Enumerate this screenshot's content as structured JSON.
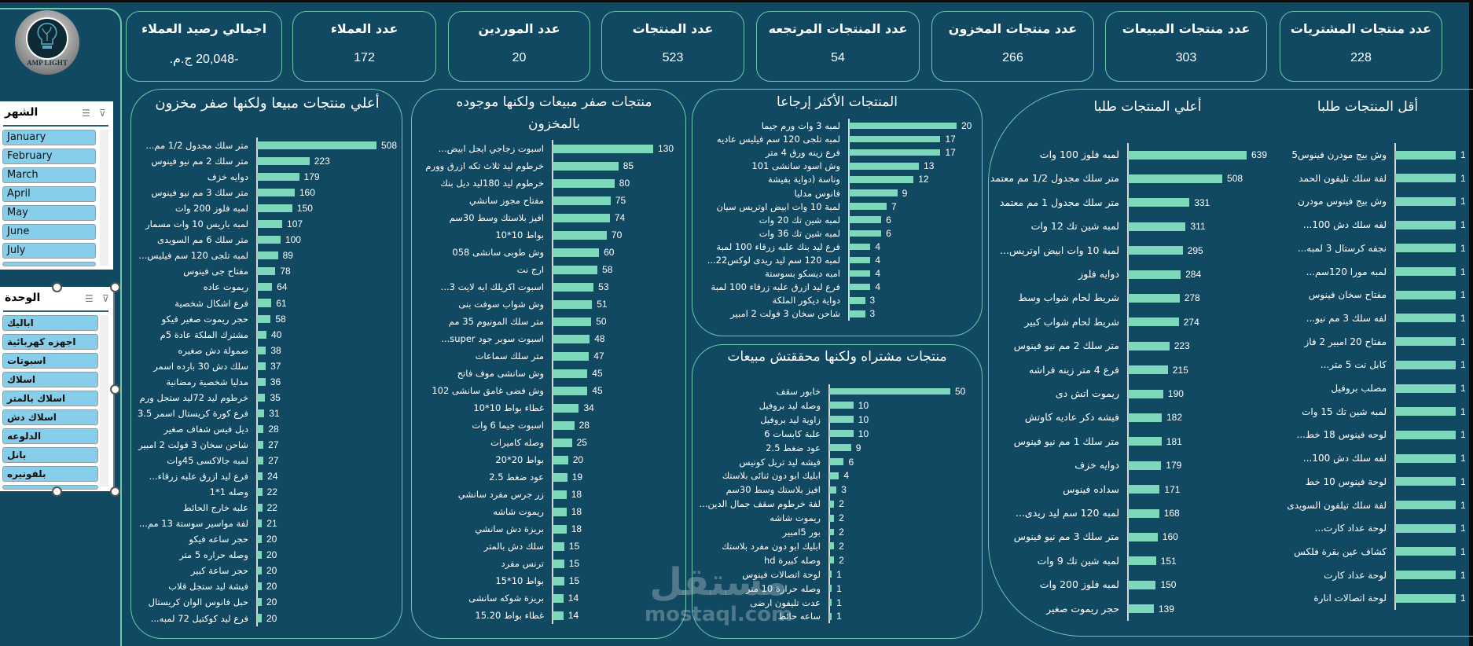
{
  "logo": {
    "text": "AMP LIGHT"
  },
  "kpis": [
    {
      "title": "عدد منتجات المشتريات",
      "value": "228"
    },
    {
      "title": "عدد منتجات المبيعات",
      "value": "303"
    },
    {
      "title": "عدد منتجات المخزون",
      "value": "266"
    },
    {
      "title": "عدد المنتجات المرتجعه",
      "value": "54"
    },
    {
      "title": "عدد المنتجات",
      "value": "523"
    },
    {
      "title": "عدد الموردين",
      "value": "20"
    },
    {
      "title": "عدد العملاء",
      "value": "172"
    },
    {
      "title": "اجمالي رصيد العملاء",
      "value": "-20,048 ج.م."
    }
  ],
  "slicers": {
    "month": {
      "title": "الشهر",
      "items": [
        "January",
        "February",
        "March",
        "April",
        "May",
        "June",
        "July"
      ]
    },
    "unit": {
      "title": "الوحدة",
      "items": [
        "اباليك",
        "اجهزه كهربائية",
        "اسبوتات",
        "اسلاك",
        "اسلاك بالمتر",
        "اسلاك دش",
        "الدلوعه",
        "بانل",
        "بلفونيره"
      ]
    }
  },
  "colors": {
    "background": "#114862",
    "bar": "#7dd8bc",
    "border": "#6cc9ab"
  },
  "watermark": {
    "arabic": "مستقل",
    "latin": "mostaql.com"
  },
  "chart_data": [
    {
      "type": "bar",
      "orientation": "horizontal",
      "title": "أعلي منتجات مبيعا ولكنها صفر مخزون",
      "categories": [
        "متر سلك مجدول 1/2 مم...",
        "متر سلك  2 مم نيو فينوس",
        "دوايه خزف",
        "متر سلك  3 مم نيو فينوس",
        "لمبه فلوز 200 وات",
        "لمبه باريس 10 وات مسمار",
        "متر سلك 6 مم السويدى",
        "لمبه تلجى 120 سم فيليس...",
        "مفتاح جى  فينوس",
        "ريموت عاده",
        "فرع اشكال شخصية",
        "حجر ريموت صغير فيكو",
        "مشترك الملكة عادة 5م",
        "صمولة دش صغيره",
        "سلك دش 30 بارده اسمر",
        "مدليا شخصية رمضانية",
        "خرطوم ليد 72ليد ستجل  ورم",
        "فرع كورة كريستال اسمر 3.5",
        "ديل فيس شفاف صغير",
        "شاحن سخان 3 فولت 2 امبير",
        "لمبه جالاكسى  45وات",
        "فرع ليد ازرق علبه زرقاء...",
        "وصله 1*1",
        "علبه خارج الحائط",
        "لفة مواسير سوستة 13 مم...",
        "حجر ساعه فيكو",
        "وصله حراره 5 متر",
        "حجر ساعة كبير",
        "فيشة ليد ستجل قلاب",
        "حبل فانوس الوان  كريستال",
        "فرع ليد كوكتيل 72 لمبه..."
      ],
      "values": [
        508,
        223,
        179,
        160,
        150,
        107,
        100,
        89,
        78,
        64,
        61,
        58,
        40,
        38,
        37,
        36,
        35,
        31,
        28,
        27,
        27,
        24,
        22,
        22,
        21,
        20,
        20,
        20,
        20,
        20,
        20
      ]
    },
    {
      "type": "bar",
      "orientation": "horizontal",
      "title": "منتجات صفر مبيعات ولكنها موجوده بالمخزون",
      "categories": [
        "اسبوت زجاجي ايجل ابيض...",
        "خرطوم ليد ثلاث تكه ازرق وورم",
        "خرطوم ليد 180ليد ديل بنك",
        "مفتاح مجوز سانشي",
        "افيز بلاستك وسط 30سم",
        "بواط 10*10",
        "وش طوبى سانشى  058",
        "ارج نت",
        "اسبوت اكريلك  ايه لايت 3...",
        "وش شواب سوفت بنى",
        "متر سلك المونيوم  35 مم",
        "اسبوت سوبر جود   super...",
        "متر سلك سماعات",
        "وش سانشى موف فاتح",
        "وش فضى غامق  سانشى 102",
        "غطاء بواط 10*10",
        "اسبوت جيما 6 وات",
        "وصله كاميرات",
        "بواط 20*20",
        "عود ضغط 2.5",
        "زر جرس مفرد سانشي",
        "ريموت شاشه",
        "بريزة دش سانشي",
        "سلك دش  بالمتر",
        "ترنس مفرد",
        "بواط 10*15",
        "بريزة شوكه سانشى",
        "غطاء بواط 15.20"
      ],
      "values": [
        130,
        85,
        80,
        75,
        74,
        70,
        60,
        58,
        53,
        51,
        50,
        48,
        47,
        45,
        45,
        34,
        28,
        25,
        20,
        19,
        18,
        18,
        18,
        15,
        15,
        15,
        14,
        14
      ]
    },
    {
      "type": "bar",
      "orientation": "horizontal",
      "title": "المنتجات الأكثر إرجاعا",
      "categories": [
        "لمبه 3 وات ورم جيما",
        "لمبه تلجى 120 سم فيليس عاديه",
        "فرع زينه ورق 4 متر",
        "وش اسود سانشى 101",
        "وناسة (دواية بفيشة",
        "فانوس مدليا",
        "لمبة 10 وات ابيض اوتريس سيان",
        "لمبه شين تك 20 وات",
        "لمبه شين تك 36 وات",
        "فرع ليد بنك علبه زرقاء 100 لمبة",
        "لمبه 120 سم ليد ريدى لوكس22...",
        "امبه ديسكو بسوستة",
        "فرع ليد ازرق علبه زرقاء 100 لمبة",
        "دواية ديكور الملكة",
        "شاحن سخان 3 فولت 2 امبير"
      ],
      "values": [
        20,
        17,
        17,
        13,
        12,
        9,
        7,
        6,
        6,
        4,
        4,
        4,
        4,
        3,
        3
      ]
    },
    {
      "type": "bar",
      "orientation": "horizontal",
      "title": "منتجات مشتراه ولكنها محققتش مبيعات",
      "categories": [
        "خابور سقف",
        "وصله ليد بروفيل",
        "زاوية ليد بروفيل",
        "علبة كابسات 6",
        "عود ضغط 2.5",
        "فيشه ليد تريل كونيس",
        "ابليك ابو دون ثنائى بلاستك",
        "افيز بلاستك وسط 30سم",
        "لفة خرطوم سقف جمال الدين...",
        "ريموت شاشه",
        "بور 5امبير",
        "ابليك ابو دون مفرد بلاستك",
        "وصله كبيرة hd",
        "لوحة اتصالات فينوس",
        "وصله حرارة 10 متر",
        "عدت تليفون ارضى",
        "ساعه حائط"
      ],
      "values": [
        50,
        10,
        10,
        10,
        9,
        6,
        4,
        3,
        2,
        2,
        2,
        2,
        2,
        1,
        1,
        1,
        1
      ]
    },
    {
      "type": "bar",
      "orientation": "horizontal",
      "title": "أعلي المنتجات طلبا",
      "categories": [
        "لمبه فلوز 100 وات",
        "متر سلك مجدول 1/2 مم معتمد",
        "متر سلك مجدول 1 مم  معتمد",
        "لمبه شين تك 12 وات",
        "لمبة 10 وات ابيض اوتريس...",
        "دوايه فلوز",
        "شريط لحام شواب وسط",
        "شريط لحام شواب كبير",
        "متر سلك  2 مم نيو فينوس",
        "فرع 4 متر زينه فراشه",
        "ريموت اتش دى",
        "فيشه دكر عاديه كاوتش",
        "متر سلك  1 مم نيو فينوس",
        "دوايه خزف",
        "سداده فينوس",
        "لمبه 120 سم ليد ريدى...",
        "متر سلك  3 مم نيو فينوس",
        "لمبه شين تك 9 وات",
        "لمبه فلوز 200 وات",
        "حجر ريموت صغير"
      ],
      "values": [
        639,
        508,
        331,
        311,
        295,
        284,
        278,
        274,
        223,
        215,
        190,
        182,
        181,
        179,
        171,
        168,
        160,
        151,
        150,
        139
      ]
    },
    {
      "type": "bar",
      "orientation": "horizontal",
      "title": "أقل المنتجات طلبا",
      "categories": [
        "وش بيج مودرن فينوس5",
        "لفة سلك تليفون الحمد",
        "وش بيج فينوس مودرن",
        "لفه سلك دش 100...",
        "نجفه كرستال 3 لمبه...",
        "لمبه مورا 120سم...",
        "مفتاح سخان فينوس",
        "لفه سلك 3 مم  نيو...",
        "مفتاح 20 امبير 2 فاز",
        "كابل نت  5 متر...",
        "مصلب بروفيل",
        "لمبه شين تك 15 وات",
        "لوحه فينوس 18 خط...",
        "لفه سلك دش 100...",
        "لوحة فينوس 10 خط",
        "لفة سلك تيلفون السويدى",
        "لوحة عداد كارت...",
        "كشاف عين بقرة  فلكس",
        "لوحة عداد كارت",
        "لوحة اتصالات انارة"
      ],
      "values": [
        1,
        1,
        1,
        1,
        1,
        1,
        1,
        1,
        1,
        1,
        1,
        1,
        1,
        1,
        1,
        1,
        1,
        1,
        1,
        1
      ]
    }
  ]
}
